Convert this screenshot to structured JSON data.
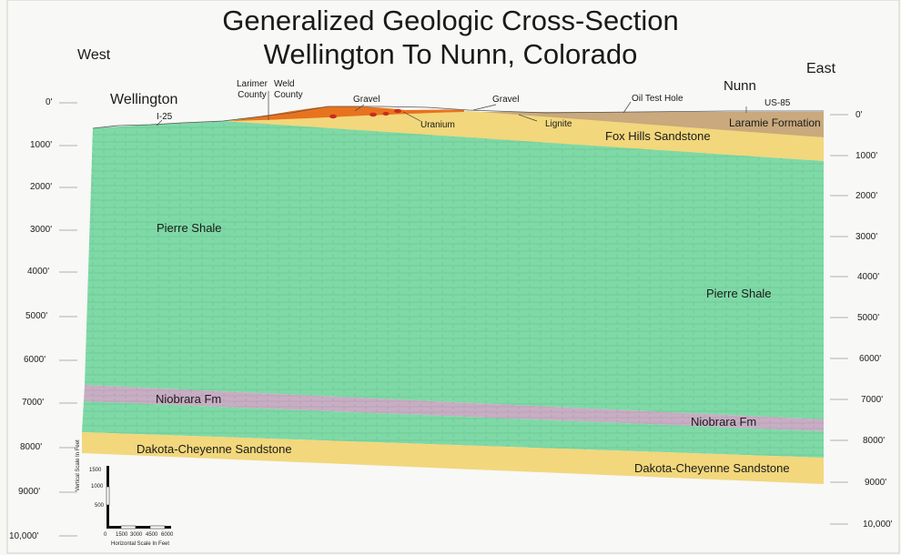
{
  "title": {
    "line1": "Generalized Geologic Cross-Section",
    "line2": "Wellington To Nunn, Colorado"
  },
  "directions": {
    "west": "West",
    "east": "East"
  },
  "places": {
    "wellington": "Wellington",
    "nunn": "Nunn",
    "i25": "I-25",
    "us85": "US-85",
    "larimer_county": "Larimer\nCounty",
    "weld_county": "Weld\nCounty",
    "oil_test_hole": "Oil Test Hole"
  },
  "features": {
    "gravel_1": "Gravel",
    "gravel_2": "Gravel",
    "uranium": "Uranium",
    "lignite": "Lignite"
  },
  "formations": {
    "laramie": "Laramie Formation",
    "fox_hills": "Fox Hills Sandstone",
    "pierre_west": "Pierre Shale",
    "pierre_east": "Pierre Shale",
    "niobrara_west": "Niobrara Fm",
    "niobrara_east": "Niobrara Fm",
    "dakota_west": "Dakota-Cheyenne Sandstone",
    "dakota_east": "Dakota-Cheyenne Sandstone"
  },
  "depth_scale_left": [
    "0'",
    "1000'",
    "2000'",
    "3000'",
    "4000'",
    "5000'",
    "6000'",
    "7000'",
    "8000'",
    "9000'",
    "10,000'"
  ],
  "depth_scale_right": [
    "0'",
    "1000'",
    "2000'",
    "3000'",
    "4000'",
    "5000'",
    "6000'",
    "7000'",
    "8000'",
    "9000'",
    "10,000'"
  ],
  "scale_bar": {
    "vertical_label": "Vertical Scale In Feet",
    "horizontal_label": "Horizontal Scale In Feet",
    "vertical_ticks": [
      "1500",
      "1000",
      "500"
    ],
    "horizontal_ticks": [
      "0",
      "1500",
      "3000",
      "4500",
      "6000"
    ]
  },
  "colors": {
    "pierre_shale": "#7fd9a6",
    "niobrara": "#c7aec3",
    "sandstone": "#f2d77c",
    "laramie": "#c9a97d",
    "gravel": "#e8731e"
  }
}
